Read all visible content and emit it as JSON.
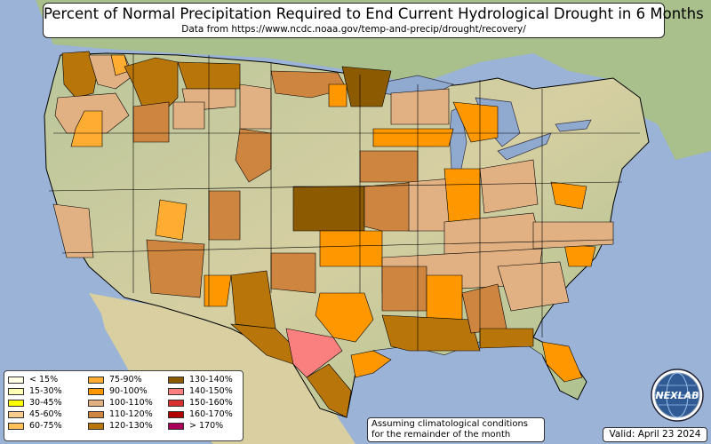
{
  "title": "Percent of Normal Precipitation Required to End Current Hydrological Drought in 6 Months",
  "subtitle": "Data from https://www.ncdc.noaa.gov/temp-and-precip/drought/recovery/",
  "legend": {
    "columns": [
      [
        {
          "label": "< 15%",
          "color": "#ffffe6"
        },
        {
          "label": "15-30%",
          "color": "#ffffb4"
        },
        {
          "label": "30-45%",
          "color": "#ffff00"
        },
        {
          "label": "45-60%",
          "color": "#f8cc8c"
        },
        {
          "label": "60-75%",
          "color": "#ffc05a"
        }
      ],
      [
        {
          "label": "75-90%",
          "color": "#ffad32"
        },
        {
          "label": "90-100%",
          "color": "#ff9800"
        },
        {
          "label": "100-110%",
          "color": "#e1b183"
        },
        {
          "label": "110-120%",
          "color": "#cd853f"
        },
        {
          "label": "120-130%",
          "color": "#b8750a"
        }
      ],
      [
        {
          "label": "130-140%",
          "color": "#8c5a00"
        },
        {
          "label": "140-150%",
          "color": "#fa8080"
        },
        {
          "label": "150-160%",
          "color": "#dc2e2e"
        },
        {
          "label": "160-170%",
          "color": "#b00000"
        },
        {
          "label": "> 170%",
          "color": "#aa005a"
        }
      ]
    ]
  },
  "note": {
    "line1": "Assuming climatological conditions",
    "line2": "for the remainder of the month"
  },
  "valid": "Valid: April 23 2024",
  "logo": {
    "text": "NEXLAB",
    "icon": "globe-icon"
  },
  "colors": {
    "ocean": "#9ab3d6",
    "land_base": "#c9d3a6",
    "land_arid": "#e2d6a8",
    "land_forest": "#9fb98a",
    "border": "#000000"
  }
}
